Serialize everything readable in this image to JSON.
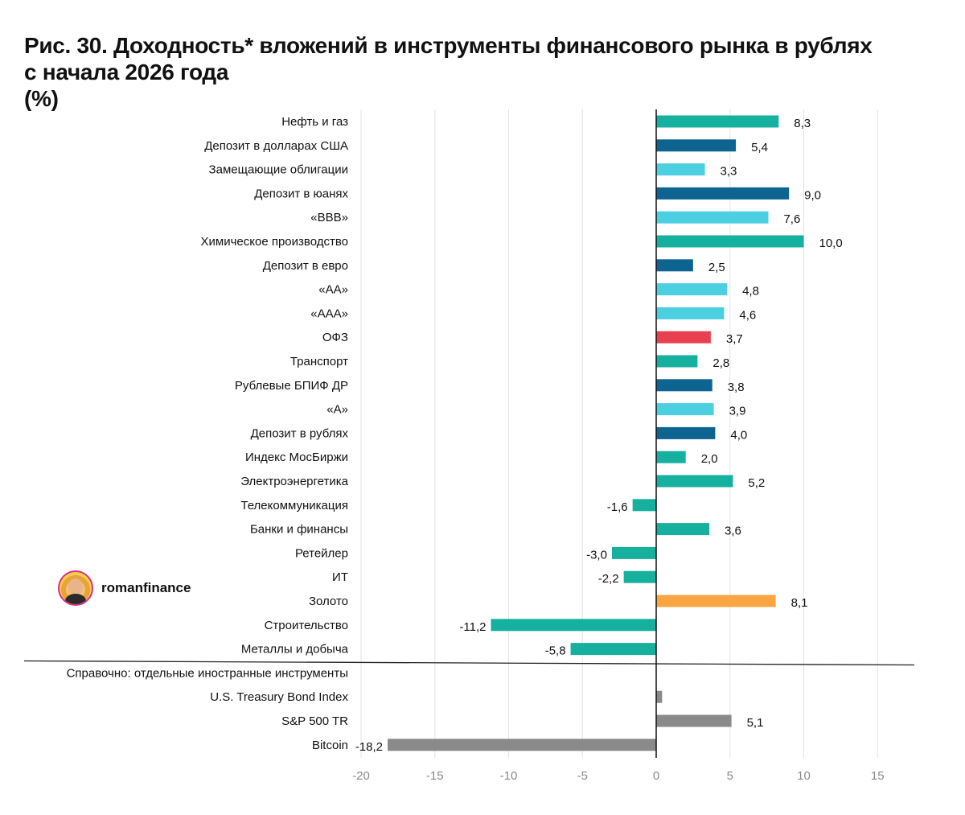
{
  "title": {
    "line1": "Рис. 30. Доходность* вложений в инструменты финансового рынка в рублях",
    "line2": "с начала 2026 года",
    "line3": "(%)"
  },
  "watermark": {
    "name": "romanfinance",
    "icon": "avatar-icon"
  },
  "chart_data": {
    "type": "bar",
    "orientation": "horizontal",
    "xlim": [
      -20,
      17.5
    ],
    "xticks": [
      -20,
      -15,
      -10,
      -5,
      0,
      5,
      10,
      15
    ],
    "grid": true,
    "legend": "none",
    "section_label": "Справочно: отдельные иностранные инструменты",
    "categories": [
      "Нефть и газ",
      "Депозит в долларах США",
      "Замещающие облигации",
      "Депозит в юанях",
      "«BBB»",
      "Химическое производство",
      "Депозит в евро",
      "«AA»",
      "«AAA»",
      "ОФЗ",
      "Транспорт",
      "Рублевые БПИФ ДР",
      "«A»",
      "Депозит в рублях",
      "Индекс МосБиржи",
      "Электроэнергетика",
      "Телекоммуникация",
      "Банки и финансы",
      "Ретейлер",
      "ИТ",
      "Золото",
      "Строительство",
      "Металлы и добыча",
      "U.S. Treasury Bond Index",
      "S&P 500 TR",
      "Bitcoin"
    ],
    "values": [
      8.3,
      5.4,
      3.3,
      9.0,
      7.6,
      10.0,
      2.5,
      4.8,
      4.6,
      3.7,
      2.8,
      3.8,
      3.9,
      4.0,
      2.0,
      5.2,
      -1.6,
      3.6,
      -3.0,
      -2.2,
      8.1,
      -11.2,
      -5.8,
      0.4,
      5.1,
      -18.2
    ],
    "labels": [
      "8,3",
      "5,4",
      "3,3",
      "9,0",
      "7,6",
      "10,0",
      "2,5",
      "4,8",
      "4,6",
      "3,7",
      "2,8",
      "3,8",
      "3,9",
      "4,0",
      "2,0",
      "5,2",
      "-1,6",
      "3,6",
      "-3,0",
      "-2,2",
      "8,1",
      "-11,2",
      "-5,8",
      "",
      "5,1",
      "-18,2"
    ],
    "colors": [
      "#16b09f",
      "#0d6491",
      "#4ccfe0",
      "#0d6491",
      "#4ccfe0",
      "#16b09f",
      "#0d6491",
      "#4ccfe0",
      "#4ccfe0",
      "#e8404f",
      "#16b09f",
      "#0d6491",
      "#4ccfe0",
      "#0d6491",
      "#16b09f",
      "#16b09f",
      "#16b09f",
      "#16b09f",
      "#16b09f",
      "#16b09f",
      "#f9a642",
      "#16b09f",
      "#16b09f",
      "#8a8a8a",
      "#8a8a8a",
      "#8a8a8a"
    ],
    "section_before_index": 23
  }
}
